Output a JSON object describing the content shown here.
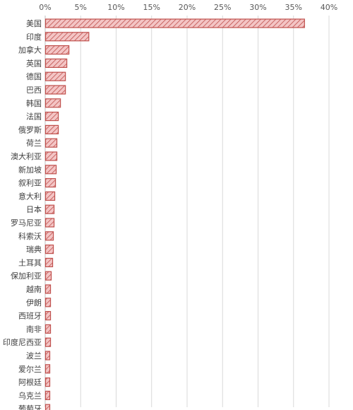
{
  "chart_data": {
    "type": "bar",
    "orientation": "horizontal",
    "title": "",
    "xlabel": "",
    "ylabel": "",
    "xlim": [
      0,
      40
    ],
    "x_ticks": [
      "0%",
      "5%",
      "10%",
      "15%",
      "20%",
      "25%",
      "30%",
      "35%",
      "40%"
    ],
    "tick_position": "top",
    "grid": true,
    "legend": "none",
    "categories": [
      "美国",
      "印度",
      "加拿大",
      "英国",
      "德国",
      "巴西",
      "韩国",
      "法国",
      "俄罗斯",
      "荷兰",
      "澳大利亚",
      "新加坡",
      "叙利亚",
      "意大利",
      "日本",
      "罗马尼亚",
      "科索沃",
      "瑞典",
      "土耳其",
      "保加利亚",
      "越南",
      "伊朗",
      "西班牙",
      "南非",
      "印度尼西亚",
      "波兰",
      "爱尔兰",
      "阿根廷",
      "乌克兰",
      "葡萄牙"
    ],
    "series": [
      {
        "values": [
          36.5,
          6.1,
          3.3,
          3.0,
          2.8,
          2.8,
          2.1,
          1.8,
          1.8,
          1.6,
          1.6,
          1.5,
          1.4,
          1.3,
          1.2,
          1.2,
          1.1,
          1.1,
          1.0,
          0.8,
          0.7,
          0.7,
          0.7,
          0.7,
          0.7,
          0.6,
          0.6,
          0.6,
          0.6,
          0.6
        ]
      }
    ],
    "colors": {
      "bar_fill": "#f3c5c5",
      "bar_stroke": "#c0504d",
      "hatch": "#c0504d",
      "grid": "#d9d9d9",
      "axis": "#bfbfbf"
    }
  }
}
